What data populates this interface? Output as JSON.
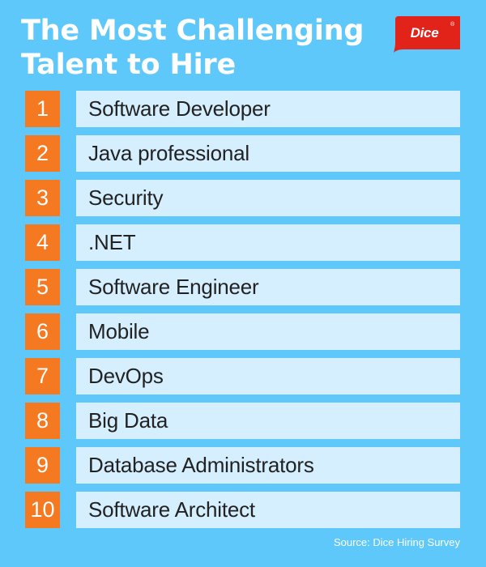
{
  "title": {
    "line1": "The Most Challenging",
    "line2": "Talent to Hire"
  },
  "logo": {
    "text": "Dice",
    "mark": "®",
    "color": "#e2231a"
  },
  "colors": {
    "background": "#5ec8fb",
    "rank_box": "#f47920",
    "name_box": "#d5effe"
  },
  "rankings": [
    {
      "rank": "1",
      "name": "Software Developer"
    },
    {
      "rank": "2",
      "name": "Java professional"
    },
    {
      "rank": "3",
      "name": "Security"
    },
    {
      "rank": "4",
      "name": ".NET"
    },
    {
      "rank": "5",
      "name": "Software Engineer"
    },
    {
      "rank": "6",
      "name": "Mobile"
    },
    {
      "rank": "7",
      "name": "DevOps"
    },
    {
      "rank": "8",
      "name": "Big Data"
    },
    {
      "rank": "9",
      "name": "Database Administrators"
    },
    {
      "rank": "10",
      "name": "Software Architect"
    }
  ],
  "source": "Source: Dice Hiring Survey"
}
